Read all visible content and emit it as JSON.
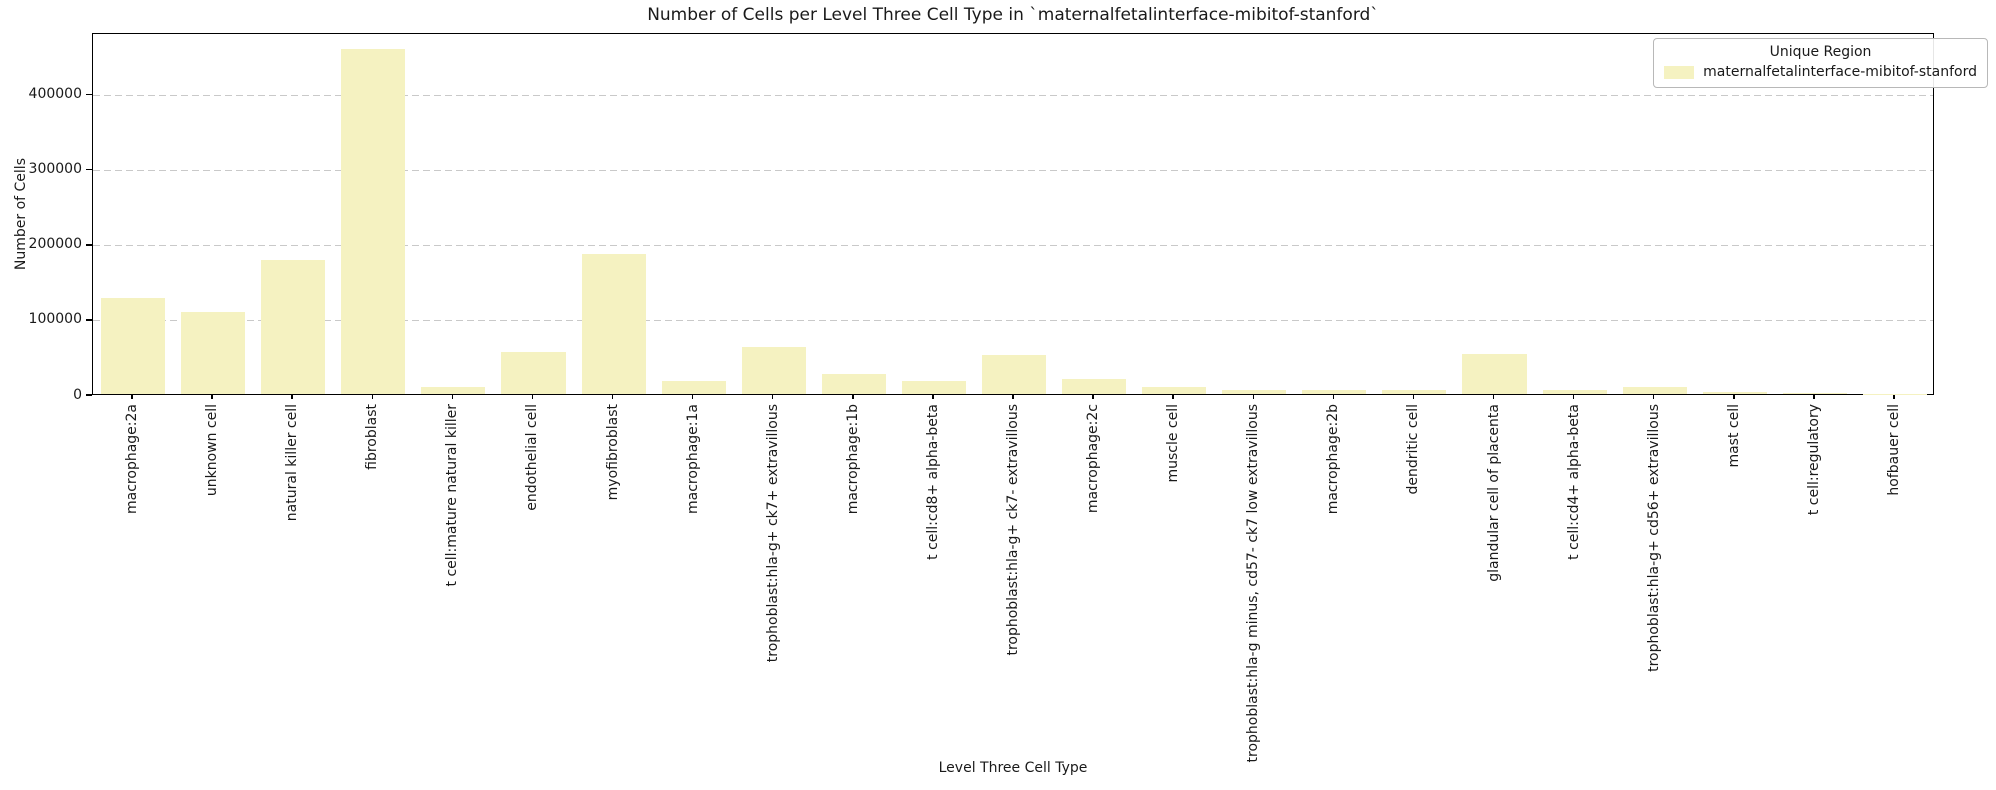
{
  "chart_data": {
    "type": "bar",
    "title": "Number of Cells per Level Three Cell Type in `maternalfetalinterface-mibitof-stanford`",
    "xlabel": "Level Three Cell Type",
    "ylabel": "Number of Cells",
    "categories": [
      "macrophage:2a",
      "unknown cell",
      "natural killer cell",
      "fibroblast",
      "t cell:mature natural killer",
      "endothelial cell",
      "myofibroblast",
      "macrophage:1a",
      "trophoblast:hla-g+ ck7+ extravillous",
      "macrophage:1b",
      "t cell:cd8+ alpha-beta",
      "trophoblast:hla-g+ ck7- extravillous",
      "macrophage:2c",
      "muscle cell",
      "trophoblast:hla-g minus, cd57- ck7 low extravillous",
      "macrophage:2b",
      "dendritic cell",
      "glandular cell of placenta",
      "t cell:cd4+ alpha-beta",
      "trophoblast:hla-g+ cd56+ extravillous",
      "mast cell",
      "t cell:regulatory",
      "hofbauer cell"
    ],
    "series": [
      {
        "name": "maternalfetalinterface-mibitof-stanford",
        "values": [
          128000,
          109000,
          178000,
          460000,
          10000,
          56000,
          186000,
          17000,
          63000,
          27000,
          17000,
          52000,
          20000,
          8700,
          5500,
          5000,
          5000,
          53000,
          5500,
          9700,
          3000,
          800,
          500
        ]
      }
    ],
    "values": [
      128000,
      109000,
      178000,
      460000,
      10000,
      56000,
      186000,
      17000,
      63000,
      27000,
      17000,
      52000,
      20000,
      8700,
      5500,
      5000,
      5000,
      53000,
      5500,
      9700,
      3000,
      800,
      500
    ],
    "ylim": [
      0,
      482000
    ],
    "yticks": [
      0,
      100000,
      200000,
      300000,
      400000
    ],
    "grid": "horizontal-dashed",
    "legend": {
      "title": "Unique Region",
      "position": "upper-right",
      "entries": [
        {
          "label": "maternalfetalinterface-mibitof-stanford",
          "color": "#f5f2c1"
        }
      ]
    },
    "colors": {
      "bar_fill": "#f5f2c1",
      "grid": "#c9c9c9",
      "spine": "#000000",
      "text": "#1a1a1a",
      "background": "#ffffff"
    }
  }
}
